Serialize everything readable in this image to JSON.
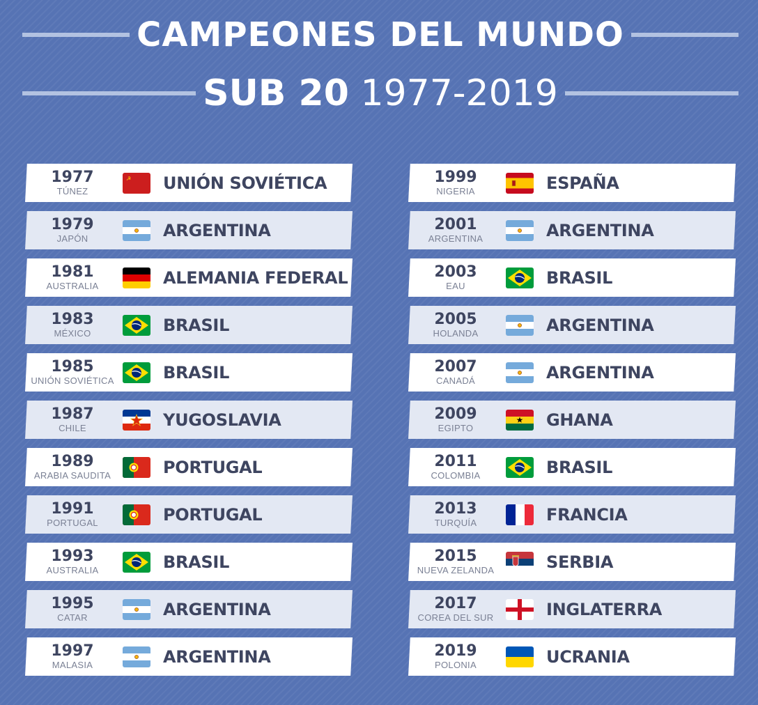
{
  "title": {
    "line1": "CAMPEONES DEL MUNDO",
    "line2_bold": "SUB 20",
    "line2_light": "1977-2019"
  },
  "left": [
    {
      "year": "1977",
      "host": "TÚNEZ",
      "country": "UNIÓN SOVIÉTICA",
      "flag": "ussr-flag-icon"
    },
    {
      "year": "1979",
      "host": "JAPÓN",
      "country": "ARGENTINA",
      "flag": "argentina-flag-icon"
    },
    {
      "year": "1981",
      "host": "AUSTRALIA",
      "country": "ALEMANIA FEDERAL",
      "flag": "germany-flag-icon"
    },
    {
      "year": "1983",
      "host": "MÉXICO",
      "country": "BRASIL",
      "flag": "brazil-flag-icon"
    },
    {
      "year": "1985",
      "host": "UNIÓN SOVIÉTICA",
      "country": "BRASIL",
      "flag": "brazil-flag-icon"
    },
    {
      "year": "1987",
      "host": "CHILE",
      "country": "YUGOSLAVIA",
      "flag": "yugoslavia-flag-icon"
    },
    {
      "year": "1989",
      "host": "ARABIA SAUDITA",
      "country": "PORTUGAL",
      "flag": "portugal-flag-icon"
    },
    {
      "year": "1991",
      "host": "PORTUGAL",
      "country": "PORTUGAL",
      "flag": "portugal-flag-icon"
    },
    {
      "year": "1993",
      "host": "AUSTRALIA",
      "country": "BRASIL",
      "flag": "brazil-flag-icon"
    },
    {
      "year": "1995",
      "host": "CATAR",
      "country": "ARGENTINA",
      "flag": "argentina-flag-icon"
    },
    {
      "year": "1997",
      "host": "MALASIA",
      "country": "ARGENTINA",
      "flag": "argentina-flag-icon"
    }
  ],
  "right": [
    {
      "year": "1999",
      "host": "NIGERIA",
      "country": "ESPAÑA",
      "flag": "spain-flag-icon"
    },
    {
      "year": "2001",
      "host": "ARGENTINA",
      "country": "ARGENTINA",
      "flag": "argentina-flag-icon"
    },
    {
      "year": "2003",
      "host": "EAU",
      "country": "BRASIL",
      "flag": "brazil-flag-icon"
    },
    {
      "year": "2005",
      "host": "HOLANDA",
      "country": "ARGENTINA",
      "flag": "argentina-flag-icon"
    },
    {
      "year": "2007",
      "host": "CANADÁ",
      "country": "ARGENTINA",
      "flag": "argentina-flag-icon"
    },
    {
      "year": "2009",
      "host": "EGIPTO",
      "country": "GHANA",
      "flag": "ghana-flag-icon"
    },
    {
      "year": "2011",
      "host": "COLOMBIA",
      "country": "BRASIL",
      "flag": "brazil-flag-icon"
    },
    {
      "year": "2013",
      "host": "TURQUÍA",
      "country": "FRANCIA",
      "flag": "france-flag-icon"
    },
    {
      "year": "2015",
      "host": "NUEVA ZELANDA",
      "country": "SERBIA",
      "flag": "serbia-flag-icon"
    },
    {
      "year": "2017",
      "host": "COREA DEL SUR",
      "country": "INGLATERRA",
      "flag": "england-flag-icon"
    },
    {
      "year": "2019",
      "host": "POLONIA",
      "country": "UCRANIA",
      "flag": "ukraine-flag-icon"
    }
  ]
}
